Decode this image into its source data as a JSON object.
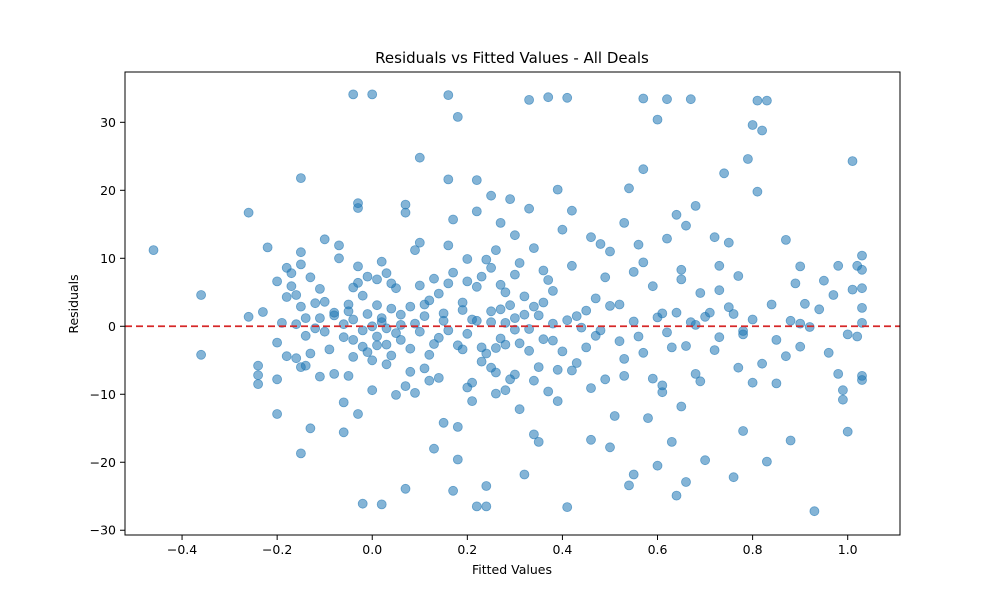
{
  "chart_data": {
    "type": "scatter",
    "title": "Residuals vs Fitted Values - All Deals",
    "xlabel": "Fitted Values",
    "ylabel": "Residuals",
    "xlim": [
      -0.52,
      1.11
    ],
    "ylim": [
      -30.7,
      37.4
    ],
    "x_ticks": [
      -0.4,
      -0.2,
      0.0,
      0.2,
      0.4,
      0.6,
      0.8,
      1.0
    ],
    "x_tick_labels": [
      "−0.4",
      "−0.2",
      "0.0",
      "0.2",
      "0.4",
      "0.6",
      "0.8",
      "1.0"
    ],
    "y_ticks": [
      -30,
      -20,
      -10,
      0,
      10,
      20,
      30
    ],
    "y_tick_labels": [
      "−30",
      "−20",
      "−10",
      "0",
      "10",
      "20",
      "30"
    ],
    "grid": false,
    "reference_line": {
      "y": 0,
      "style": "dashed",
      "color": "#d62728"
    },
    "point_color": "#1f77b4",
    "point_opacity": 0.55,
    "points": [
      [
        -0.46,
        11.2
      ],
      [
        -0.36,
        4.6
      ],
      [
        -0.36,
        -4.2
      ],
      [
        -0.26,
        16.7
      ],
      [
        -0.26,
        1.4
      ],
      [
        -0.24,
        -5.8
      ],
      [
        -0.24,
        -7.2
      ],
      [
        -0.24,
        -8.5
      ],
      [
        -0.23,
        2.1
      ],
      [
        -0.22,
        11.6
      ],
      [
        -0.2,
        6.6
      ],
      [
        -0.2,
        -2.4
      ],
      [
        -0.2,
        -7.8
      ],
      [
        -0.2,
        -12.9
      ],
      [
        -0.19,
        0.5
      ],
      [
        -0.18,
        8.6
      ],
      [
        -0.18,
        4.3
      ],
      [
        -0.18,
        -4.4
      ],
      [
        -0.17,
        7.8
      ],
      [
        -0.17,
        5.9
      ],
      [
        -0.16,
        4.6
      ],
      [
        -0.16,
        0.3
      ],
      [
        -0.16,
        -4.7
      ],
      [
        -0.15,
        9.1
      ],
      [
        -0.15,
        10.9
      ],
      [
        -0.15,
        2.9
      ],
      [
        -0.15,
        -6.0
      ],
      [
        -0.15,
        -18.7
      ],
      [
        -0.15,
        21.8
      ],
      [
        -0.14,
        1.2
      ],
      [
        -0.14,
        -5.8
      ],
      [
        -0.13,
        7.2
      ],
      [
        -0.13,
        -4.0
      ],
      [
        -0.13,
        -15.0
      ],
      [
        -0.12,
        -0.3
      ],
      [
        -0.11,
        1.2
      ],
      [
        -0.11,
        5.5
      ],
      [
        -0.11,
        -7.4
      ],
      [
        -0.1,
        3.6
      ],
      [
        -0.1,
        12.8
      ],
      [
        -0.09,
        -3.4
      ],
      [
        -0.08,
        1.6
      ],
      [
        -0.08,
        -7.0
      ],
      [
        -0.07,
        10.0
      ],
      [
        -0.07,
        11.9
      ],
      [
        -0.06,
        -1.6
      ],
      [
        -0.06,
        -11.2
      ],
      [
        -0.06,
        -15.6
      ],
      [
        -0.05,
        3.2
      ],
      [
        -0.05,
        2.2
      ],
      [
        -0.05,
        -7.3
      ],
      [
        -0.04,
        5.7
      ],
      [
        -0.04,
        1.0
      ],
      [
        -0.04,
        -2.0
      ],
      [
        -0.04,
        -4.5
      ],
      [
        -0.04,
        34.1
      ],
      [
        -0.03,
        8.8
      ],
      [
        -0.03,
        17.4
      ],
      [
        -0.03,
        18.1
      ],
      [
        -0.03,
        -12.9
      ],
      [
        -0.02,
        -0.6
      ],
      [
        -0.02,
        -26.1
      ],
      [
        -0.02,
        4.5
      ],
      [
        -0.01,
        7.3
      ],
      [
        -0.01,
        -3.8
      ],
      [
        0.0,
        0.0
      ],
      [
        0.0,
        34.1
      ],
      [
        0.0,
        -5.0
      ],
      [
        0.01,
        3.1
      ],
      [
        0.01,
        6.9
      ],
      [
        0.01,
        -2.8
      ],
      [
        0.02,
        1.2
      ],
      [
        0.02,
        -26.2
      ],
      [
        0.02,
        9.5
      ],
      [
        0.03,
        -0.3
      ],
      [
        0.03,
        -5.6
      ],
      [
        0.04,
        -4.3
      ],
      [
        0.04,
        6.3
      ],
      [
        0.05,
        5.6
      ],
      [
        0.05,
        -10.1
      ],
      [
        0.06,
        0.2
      ],
      [
        0.06,
        -2.0
      ],
      [
        0.07,
        16.7
      ],
      [
        0.07,
        17.9
      ],
      [
        0.07,
        -23.9
      ],
      [
        0.08,
        2.9
      ],
      [
        0.08,
        -6.7
      ],
      [
        0.09,
        11.2
      ],
      [
        0.09,
        -9.8
      ],
      [
        0.1,
        12.3
      ],
      [
        0.1,
        24.8
      ],
      [
        0.1,
        -0.8
      ],
      [
        0.11,
        1.5
      ],
      [
        0.11,
        3.2
      ],
      [
        0.12,
        -4.2
      ],
      [
        0.12,
        -8.0
      ],
      [
        0.13,
        7.0
      ],
      [
        0.13,
        -18.0
      ],
      [
        0.14,
        -1.7
      ],
      [
        0.14,
        4.8
      ],
      [
        0.15,
        -14.2
      ],
      [
        0.15,
        0.8
      ],
      [
        0.16,
        6.3
      ],
      [
        0.16,
        11.9
      ],
      [
        0.16,
        21.6
      ],
      [
        0.16,
        34.0
      ],
      [
        0.17,
        -24.2
      ],
      [
        0.17,
        15.7
      ],
      [
        0.18,
        30.8
      ],
      [
        0.18,
        -14.8
      ],
      [
        0.18,
        -19.6
      ],
      [
        0.19,
        -3.4
      ],
      [
        0.19,
        2.4
      ],
      [
        0.2,
        6.6
      ],
      [
        0.2,
        9.9
      ],
      [
        0.21,
        -11.0
      ],
      [
        0.21,
        1.0
      ],
      [
        0.22,
        16.9
      ],
      [
        0.22,
        21.5
      ],
      [
        0.22,
        -26.5
      ],
      [
        0.23,
        -3.1
      ],
      [
        0.23,
        7.3
      ],
      [
        0.24,
        -23.5
      ],
      [
        0.24,
        -26.5
      ],
      [
        0.25,
        19.2
      ],
      [
        0.25,
        0.6
      ],
      [
        0.25,
        -6.1
      ],
      [
        0.26,
        11.2
      ],
      [
        0.26,
        -9.9
      ],
      [
        0.27,
        15.2
      ],
      [
        0.27,
        2.5
      ],
      [
        0.28,
        -2.7
      ],
      [
        0.28,
        5.0
      ],
      [
        0.29,
        18.7
      ],
      [
        0.29,
        -7.8
      ],
      [
        0.3,
        13.4
      ],
      [
        0.3,
        -0.5
      ],
      [
        0.31,
        9.3
      ],
      [
        0.31,
        -12.2
      ],
      [
        0.32,
        -21.8
      ],
      [
        0.32,
        1.7
      ],
      [
        0.33,
        17.3
      ],
      [
        0.33,
        -3.6
      ],
      [
        0.33,
        33.3
      ],
      [
        0.34,
        -15.9
      ],
      [
        0.34,
        11.5
      ],
      [
        0.35,
        -6.0
      ],
      [
        0.35,
        -17.0
      ],
      [
        0.36,
        3.5
      ],
      [
        0.36,
        8.2
      ],
      [
        0.37,
        -9.6
      ],
      [
        0.37,
        33.7
      ],
      [
        0.38,
        0.4
      ],
      [
        0.38,
        -2.1
      ],
      [
        0.39,
        20.1
      ],
      [
        0.39,
        -11.0
      ],
      [
        0.4,
        14.2
      ],
      [
        0.41,
        33.6
      ],
      [
        0.41,
        -26.6
      ],
      [
        0.42,
        17.0
      ],
      [
        0.42,
        -6.5
      ],
      [
        0.43,
        1.5
      ],
      [
        0.44,
        -0.2
      ],
      [
        0.45,
        -3.1
      ],
      [
        0.46,
        13.1
      ],
      [
        0.46,
        -16.7
      ],
      [
        0.47,
        4.1
      ],
      [
        0.48,
        12.1
      ],
      [
        0.48,
        -0.6
      ],
      [
        0.49,
        -7.8
      ],
      [
        0.5,
        11.0
      ],
      [
        0.5,
        -17.8
      ],
      [
        0.51,
        -13.2
      ],
      [
        0.52,
        3.2
      ],
      [
        0.53,
        15.2
      ],
      [
        0.53,
        -4.8
      ],
      [
        0.54,
        20.3
      ],
      [
        0.54,
        -23.4
      ],
      [
        0.55,
        8.0
      ],
      [
        0.55,
        -21.8
      ],
      [
        0.56,
        12.0
      ],
      [
        0.56,
        -1.5
      ],
      [
        0.57,
        23.1
      ],
      [
        0.57,
        33.5
      ],
      [
        0.58,
        -13.5
      ],
      [
        0.59,
        5.9
      ],
      [
        0.59,
        -7.7
      ],
      [
        0.6,
        30.4
      ],
      [
        0.6,
        -20.5
      ],
      [
        0.61,
        1.9
      ],
      [
        0.61,
        -9.7
      ],
      [
        0.62,
        33.4
      ],
      [
        0.62,
        12.9
      ],
      [
        0.63,
        -17.0
      ],
      [
        0.63,
        -3.1
      ],
      [
        0.64,
        16.4
      ],
      [
        0.64,
        -24.9
      ],
      [
        0.65,
        8.3
      ],
      [
        0.65,
        -11.8
      ],
      [
        0.66,
        14.8
      ],
      [
        0.66,
        -22.9
      ],
      [
        0.67,
        33.4
      ],
      [
        0.67,
        0.6
      ],
      [
        0.68,
        17.7
      ],
      [
        0.68,
        -7.0
      ],
      [
        0.69,
        4.9
      ],
      [
        0.7,
        -19.7
      ],
      [
        0.71,
        2.0
      ],
      [
        0.72,
        13.1
      ],
      [
        0.72,
        -3.5
      ],
      [
        0.73,
        8.9
      ],
      [
        0.74,
        22.5
      ],
      [
        0.75,
        12.3
      ],
      [
        0.76,
        -22.2
      ],
      [
        0.76,
        1.8
      ],
      [
        0.77,
        7.4
      ],
      [
        0.78,
        -15.4
      ],
      [
        0.78,
        -0.7
      ],
      [
        0.79,
        24.6
      ],
      [
        0.8,
        29.6
      ],
      [
        0.8,
        -8.3
      ],
      [
        0.81,
        19.8
      ],
      [
        0.81,
        33.2
      ],
      [
        0.82,
        28.8
      ],
      [
        0.82,
        -5.5
      ],
      [
        0.83,
        33.2
      ],
      [
        0.83,
        -19.9
      ],
      [
        0.84,
        3.2
      ],
      [
        0.85,
        -8.4
      ],
      [
        0.87,
        12.7
      ],
      [
        0.87,
        -4.4
      ],
      [
        0.88,
        -16.8
      ],
      [
        0.88,
        0.8
      ],
      [
        0.89,
        6.3
      ],
      [
        0.9,
        8.8
      ],
      [
        0.9,
        -3.0
      ],
      [
        0.91,
        3.3
      ],
      [
        0.92,
        -0.1
      ],
      [
        0.93,
        -27.2
      ],
      [
        0.94,
        2.5
      ],
      [
        0.95,
        6.7
      ],
      [
        0.96,
        -3.9
      ],
      [
        0.97,
        4.6
      ],
      [
        0.98,
        -7.0
      ],
      [
        0.98,
        8.9
      ],
      [
        0.99,
        -10.8
      ],
      [
        0.99,
        -9.4
      ],
      [
        1.0,
        -15.5
      ],
      [
        1.0,
        -1.2
      ],
      [
        1.01,
        5.4
      ],
      [
        1.01,
        24.3
      ],
      [
        1.02,
        8.9
      ],
      [
        1.02,
        -1.5
      ],
      [
        1.03,
        5.6
      ],
      [
        1.03,
        -7.3
      ],
      [
        1.03,
        10.4
      ],
      [
        1.03,
        0.5
      ],
      [
        1.03,
        -7.9
      ],
      [
        1.03,
        2.7
      ],
      [
        1.03,
        8.3
      ],
      [
        0.26,
        -3.2
      ],
      [
        0.28,
        0.5
      ],
      [
        0.3,
        1.2
      ],
      [
        0.27,
        -1.8
      ],
      [
        0.24,
        -4.0
      ],
      [
        0.31,
        -2.5
      ],
      [
        0.22,
        0.8
      ],
      [
        0.29,
        3.1
      ],
      [
        0.33,
        -0.4
      ],
      [
        0.25,
        2.2
      ],
      [
        0.2,
        -1.1
      ],
      [
        0.35,
        1.6
      ],
      [
        0.18,
        -2.8
      ],
      [
        0.32,
        4.4
      ],
      [
        0.27,
        6.1
      ],
      [
        0.23,
        -5.2
      ],
      [
        0.3,
        -7.1
      ],
      [
        0.19,
        3.5
      ],
      [
        0.36,
        -1.9
      ],
      [
        0.21,
        -8.3
      ],
      [
        0.28,
        -9.4
      ],
      [
        0.34,
        2.9
      ],
      [
        0.25,
        8.6
      ],
      [
        0.16,
        -0.6
      ],
      [
        0.38,
        5.2
      ],
      [
        0.15,
        1.9
      ],
      [
        0.4,
        -3.7
      ],
      [
        0.13,
        -2.6
      ],
      [
        0.41,
        0.9
      ],
      [
        0.12,
        3.8
      ],
      [
        0.43,
        -5.4
      ],
      [
        0.11,
        -6.2
      ],
      [
        0.45,
        2.3
      ],
      [
        0.09,
        0.4
      ],
      [
        0.47,
        -1.4
      ],
      [
        0.08,
        -3.3
      ],
      [
        0.5,
        3.0
      ],
      [
        0.06,
        1.7
      ],
      [
        0.52,
        -2.2
      ],
      [
        0.05,
        -1.0
      ],
      [
        0.55,
        0.7
      ],
      [
        0.04,
        2.6
      ],
      [
        0.57,
        -3.9
      ],
      [
        0.03,
        -2.7
      ],
      [
        0.6,
        1.3
      ],
      [
        0.02,
        0.6
      ],
      [
        0.62,
        -0.9
      ],
      [
        0.01,
        -1.5
      ],
      [
        0.64,
        2.0
      ],
      [
        -0.01,
        1.8
      ],
      [
        0.66,
        -2.9
      ],
      [
        -0.02,
        -3.0
      ],
      [
        0.68,
        0.2
      ],
      [
        -0.06,
        0.3
      ],
      [
        0.7,
        1.4
      ],
      [
        -0.08,
        2.0
      ],
      [
        0.73,
        -1.6
      ],
      [
        -0.1,
        -0.8
      ],
      [
        0.75,
        2.8
      ],
      [
        -0.12,
        3.4
      ],
      [
        0.78,
        -1.2
      ],
      [
        -0.14,
        -1.4
      ],
      [
        0.8,
        1.0
      ],
      [
        0.85,
        -2.0
      ],
      [
        0.9,
        0.4
      ],
      [
        0.22,
        5.8
      ],
      [
        0.26,
        -6.8
      ],
      [
        0.3,
        7.6
      ],
      [
        0.34,
        -8.0
      ],
      [
        0.24,
        9.8
      ],
      [
        0.2,
        -9.0
      ],
      [
        0.37,
        6.8
      ],
      [
        0.17,
        7.9
      ],
      [
        0.39,
        -6.4
      ],
      [
        0.14,
        -7.6
      ],
      [
        0.42,
        8.9
      ],
      [
        0.1,
        6.0
      ],
      [
        0.46,
        -9.1
      ],
      [
        0.07,
        -8.8
      ],
      [
        0.49,
        7.2
      ],
      [
        0.03,
        7.8
      ],
      [
        0.53,
        -7.3
      ],
      [
        0.0,
        -9.4
      ],
      [
        0.57,
        9.4
      ],
      [
        -0.03,
        6.4
      ],
      [
        0.61,
        -8.7
      ],
      [
        0.65,
        6.9
      ],
      [
        0.69,
        -8.1
      ],
      [
        0.73,
        5.3
      ],
      [
        0.77,
        -6.1
      ]
    ]
  }
}
